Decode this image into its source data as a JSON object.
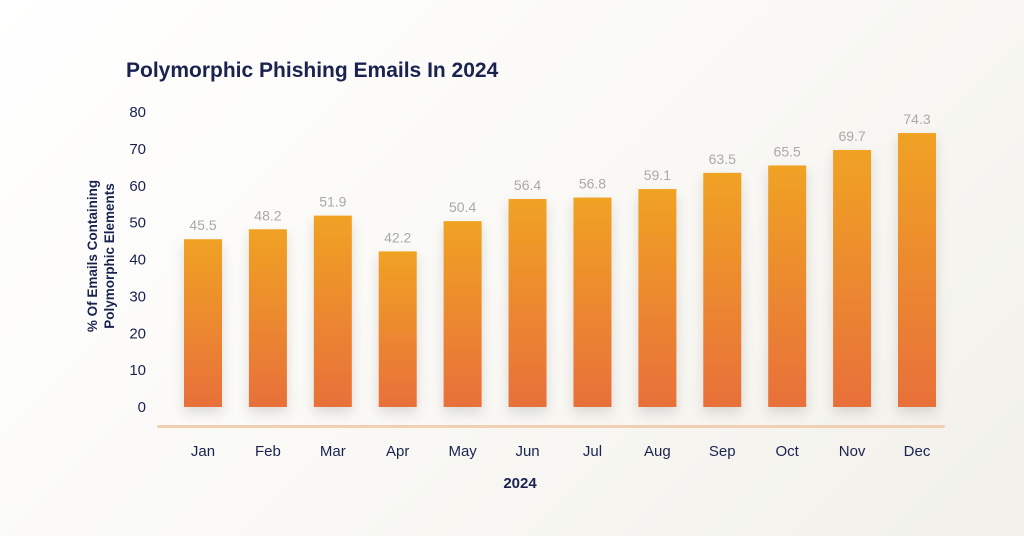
{
  "chart_data": {
    "type": "bar",
    "title": "Polymorphic Phishing Emails In 2024",
    "xlabel": "2024",
    "ylabel_lines": [
      "% Of Emails Containing",
      "Polymorphic Elements"
    ],
    "categories": [
      "Jan",
      "Feb",
      "Mar",
      "Apr",
      "May",
      "Jun",
      "Jul",
      "Aug",
      "Sep",
      "Oct",
      "Nov",
      "Dec"
    ],
    "values": [
      45.5,
      48.2,
      51.9,
      42.2,
      50.4,
      56.4,
      56.8,
      59.1,
      63.5,
      65.5,
      69.7,
      74.3
    ],
    "value_labels": [
      "45.5",
      "48.2",
      "51.9",
      "42.2",
      "50.4",
      "56.4",
      "56.8",
      "59.1",
      "63.5",
      "65.5",
      "69.7",
      "74.3"
    ],
    "yticks": [
      "0",
      "10",
      "20",
      "30",
      "40",
      "50",
      "60",
      "70",
      "80"
    ],
    "ylim": [
      0,
      80
    ],
    "grid": false,
    "colors": {
      "bar_top": "#f0a224",
      "bar_bottom": "#e8703a",
      "baseline": "#f2cfb1",
      "text": "#1a2350",
      "data_label": "#a9a9a9"
    }
  }
}
